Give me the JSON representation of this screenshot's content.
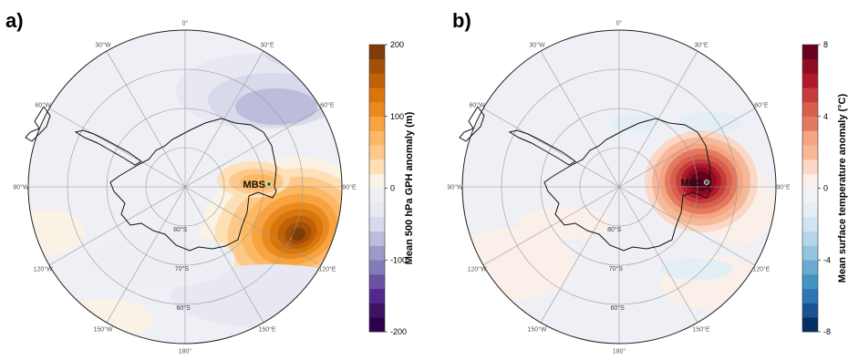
{
  "panels": [
    {
      "label": "a)",
      "station": "MBS",
      "colorbar": {
        "title": "Mean 500 hPa GPH anomaly (m)",
        "ticks": [
          "200",
          "100",
          "0",
          "-100",
          "-200"
        ],
        "tick_values": [
          200,
          100,
          0,
          -100,
          -200
        ],
        "range": [
          -200,
          200
        ],
        "colors": [
          "#2d004b",
          "#3f1165",
          "#54278f",
          "#6a51a3",
          "#807dba",
          "#9e9ac8",
          "#bcbddc",
          "#d8daeb",
          "#e7e8f2",
          "#eeeff5",
          "#fbf2e6",
          "#fde0b6",
          "#fdc98a",
          "#fdb863",
          "#f7a340",
          "#e88a1f",
          "#d8750b",
          "#c06008",
          "#a44f08",
          "#7f3b08"
        ]
      }
    },
    {
      "label": "b)",
      "station": "MBS",
      "colorbar": {
        "title": "Mean surface temperature anomaly (°C)",
        "ticks": [
          "8",
          "4",
          "0",
          "-4",
          "-8"
        ],
        "tick_values": [
          8,
          4,
          0,
          -4,
          -8
        ],
        "range": [
          -8,
          8
        ],
        "colors": [
          "#053061",
          "#1a5394",
          "#2f74b4",
          "#4393c3",
          "#6aaad0",
          "#92c5de",
          "#b5d6e8",
          "#d1e5f0",
          "#e4eef5",
          "#eef3f7",
          "#fbefea",
          "#fbd7c6",
          "#f7b799",
          "#f4a582",
          "#e5795f",
          "#d6604d",
          "#c43c3c",
          "#b2182b",
          "#8e0d20",
          "#67001f"
        ]
      }
    }
  ],
  "map_labels": {
    "longitudes": [
      "0°",
      "30°E",
      "60°E",
      "90°E",
      "120°E",
      "150°E",
      "180°",
      "150°W",
      "120°W",
      "90°W",
      "60°W",
      "30°W"
    ],
    "latitudes": [
      "80°S",
      "70°S",
      "60°S"
    ]
  },
  "colors": {
    "neutral_fill": "#eef0f6",
    "grid": "#9a9a9a",
    "coast": "#111111"
  }
}
